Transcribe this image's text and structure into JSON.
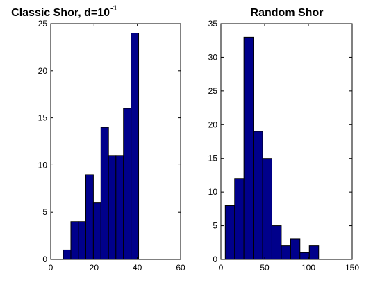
{
  "colors": {
    "bar_fill": "#00008B",
    "bar_edge": "#000000",
    "axes": "#000000",
    "background": "#ffffff"
  },
  "chart_data": [
    {
      "type": "bar",
      "title": "Classic Shor, d=10",
      "title_superscript": "-1",
      "xlabel": "",
      "ylabel": "",
      "xlim": [
        0,
        60
      ],
      "ylim": [
        0,
        25
      ],
      "x_ticks": [
        0,
        20,
        40,
        60
      ],
      "y_ticks": [
        0,
        5,
        10,
        15,
        20,
        25
      ],
      "x_tick_labels": [
        "0",
        "20",
        "40",
        "60"
      ],
      "y_tick_labels": [
        "0",
        "5",
        "10",
        "15",
        "20",
        "25"
      ],
      "grid": false,
      "bin_edges": [
        5.8,
        9.3,
        12.8,
        16.2,
        19.7,
        23.2,
        26.7,
        30.1,
        33.6,
        37.1,
        40.6
      ],
      "values": [
        1,
        4,
        4,
        9,
        6,
        14,
        11,
        11,
        16,
        24
      ]
    },
    {
      "type": "bar",
      "title": "Random Shor",
      "xlabel": "",
      "ylabel": "",
      "xlim": [
        0,
        150
      ],
      "ylim": [
        0,
        35
      ],
      "x_ticks": [
        0,
        50,
        100,
        150
      ],
      "y_ticks": [
        0,
        5,
        10,
        15,
        20,
        25,
        30,
        35
      ],
      "x_tick_labels": [
        "0",
        "50",
        "100",
        "150"
      ],
      "y_tick_labels": [
        "0",
        "5",
        "10",
        "15",
        "20",
        "25",
        "30",
        "35"
      ],
      "grid": false,
      "bin_edges": [
        5,
        15.7,
        26.3,
        37,
        47.7,
        58.3,
        69,
        79.7,
        90.3,
        101,
        111.7
      ],
      "values": [
        8,
        12,
        33,
        19,
        15,
        5,
        2,
        3,
        1,
        2
      ]
    }
  ]
}
